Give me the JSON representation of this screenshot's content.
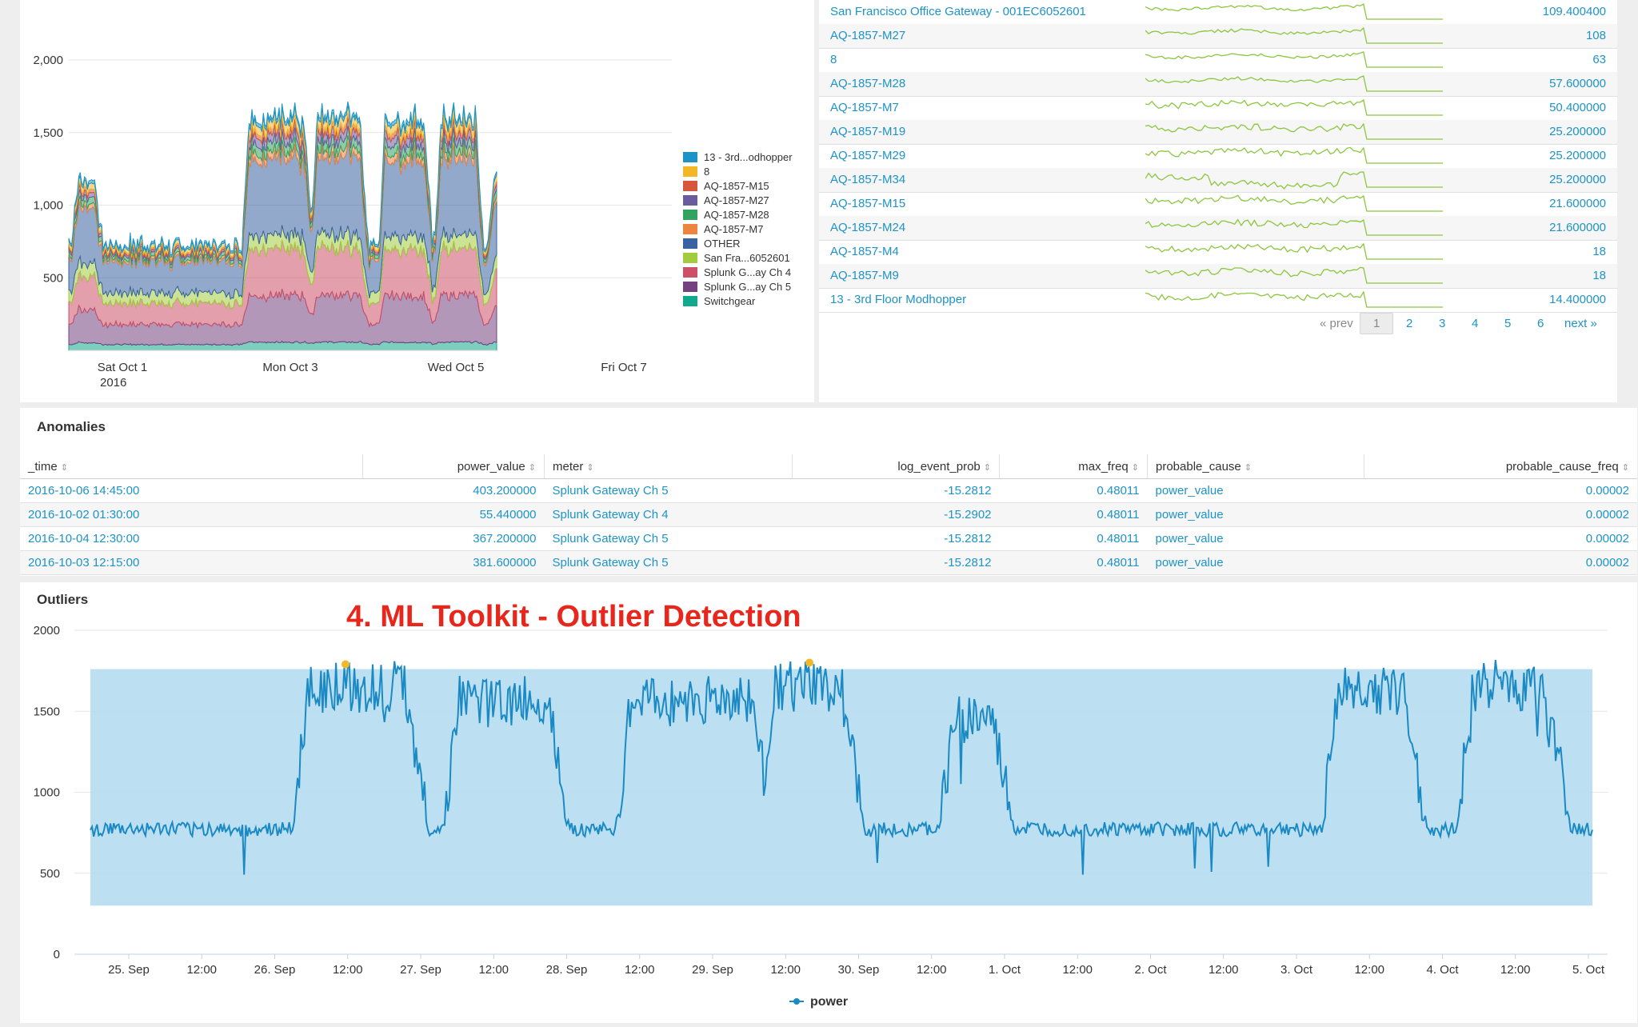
{
  "stacked_chart": {
    "chart_data": {
      "type": "area",
      "stacked": true,
      "y_ticks": [
        "2,000",
        "1,500",
        "1,000",
        "500"
      ],
      "x_ticks": [
        {
          "line1": "Sat Oct 1",
          "line2": "2016"
        },
        {
          "line1": "Mon Oct 3",
          "line2": ""
        },
        {
          "line1": "Wed Oct 5",
          "line2": ""
        },
        {
          "line1": "Fri Oct 7",
          "line2": ""
        }
      ],
      "legend_position": "right",
      "series": [
        {
          "name": "13 - 3rd...odhopper",
          "color": "#1e93c6"
        },
        {
          "name": "8",
          "color": "#f2b827"
        },
        {
          "name": "AQ-1857-M15",
          "color": "#d6563c"
        },
        {
          "name": "AQ-1857-M27",
          "color": "#6a5c9e"
        },
        {
          "name": "AQ-1857-M28",
          "color": "#31a35f"
        },
        {
          "name": "AQ-1857-M7",
          "color": "#ed8440"
        },
        {
          "name": "OTHER",
          "color": "#3863a0"
        },
        {
          "name": "San Fra...6052601",
          "color": "#a2cc3e"
        },
        {
          "name": "Splunk G...ay Ch 4",
          "color": "#cc5068"
        },
        {
          "name": "Splunk G...ay Ch 5",
          "color": "#73427f"
        },
        {
          "name": "Switchgear",
          "color": "#11a88b"
        }
      ]
    }
  },
  "sparkline_table": {
    "rows": [
      {
        "name": "San Francisco Office Gateway - 001EC6052601",
        "value": "109.400400"
      },
      {
        "name": "AQ-1857-M27",
        "value": "108"
      },
      {
        "name": "8",
        "value": "63"
      },
      {
        "name": "AQ-1857-M28",
        "value": "57.600000"
      },
      {
        "name": "AQ-1857-M7",
        "value": "50.400000"
      },
      {
        "name": "AQ-1857-M19",
        "value": "25.200000"
      },
      {
        "name": "AQ-1857-M29",
        "value": "25.200000"
      },
      {
        "name": "AQ-1857-M34",
        "value": "25.200000"
      },
      {
        "name": "AQ-1857-M15",
        "value": "21.600000"
      },
      {
        "name": "AQ-1857-M24",
        "value": "21.600000"
      },
      {
        "name": "AQ-1857-M4",
        "value": "18"
      },
      {
        "name": "AQ-1857-M9",
        "value": "18"
      },
      {
        "name": "13 - 3rd Floor Modhopper",
        "value": "14.400000"
      }
    ],
    "pager": {
      "prev": "« prev",
      "pages": [
        "1",
        "2",
        "3",
        "4",
        "5",
        "6"
      ],
      "current": "1",
      "next": "next »"
    },
    "spark_color": "#8cc63f"
  },
  "anomalies": {
    "title": "Anomalies",
    "columns": [
      "_time",
      "power_value",
      "meter",
      "log_event_prob",
      "max_freq",
      "probable_cause",
      "probable_cause_freq"
    ],
    "rows": [
      {
        "time": "2016-10-06 14:45:00",
        "power_value": "403.200000",
        "meter": "Splunk Gateway Ch 5",
        "log_event_prob": "-15.2812",
        "max_freq": "0.48011",
        "probable_cause": "power_value",
        "probable_cause_freq": "0.00002"
      },
      {
        "time": "2016-10-02 01:30:00",
        "power_value": "55.440000",
        "meter": "Splunk Gateway Ch 4",
        "log_event_prob": "-15.2902",
        "max_freq": "0.48011",
        "probable_cause": "power_value",
        "probable_cause_freq": "0.00002"
      },
      {
        "time": "2016-10-04 12:30:00",
        "power_value": "367.200000",
        "meter": "Splunk Gateway Ch 5",
        "log_event_prob": "-15.2812",
        "max_freq": "0.48011",
        "probable_cause": "power_value",
        "probable_cause_freq": "0.00002"
      },
      {
        "time": "2016-10-03 12:15:00",
        "power_value": "381.600000",
        "meter": "Splunk Gateway Ch 5",
        "log_event_prob": "-15.2812",
        "max_freq": "0.48011",
        "probable_cause": "power_value",
        "probable_cause_freq": "0.00002"
      }
    ]
  },
  "outliers": {
    "title": "Outliers",
    "banner": "4. ML Toolkit - Outlier Detection",
    "legend_label": "power",
    "chart_data": {
      "type": "line",
      "y_ticks": [
        "2000",
        "1500",
        "1000",
        "500",
        "0"
      ],
      "ylim": [
        0,
        2000
      ],
      "x_ticks": [
        "25. Sep",
        "12:00",
        "26. Sep",
        "12:00",
        "27. Sep",
        "12:00",
        "28. Sep",
        "12:00",
        "29. Sep",
        "12:00",
        "30. Sep",
        "12:00",
        "1. Oct",
        "12:00",
        "2. Oct",
        "12:00",
        "3. Oct",
        "12:00",
        "4. Oct",
        "12:00",
        "5. Oct"
      ],
      "band": [
        300,
        1760
      ],
      "outlier_values": [
        1790,
        1800
      ],
      "line_color": "#1b8ac4",
      "band_color": "#b5ddf0",
      "outlier_color": "#f2b827"
    }
  }
}
